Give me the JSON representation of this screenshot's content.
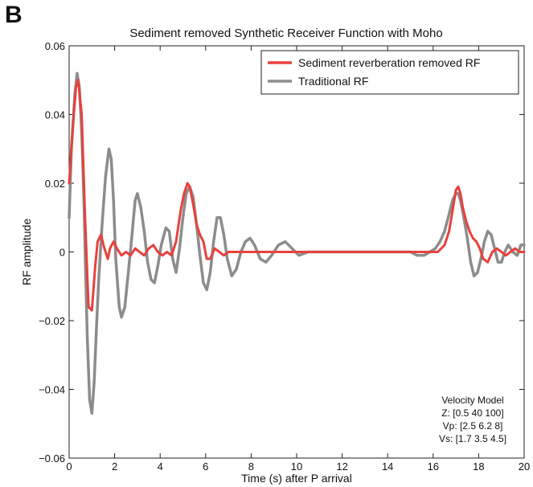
{
  "panel_label": "B",
  "chart_data": {
    "type": "line",
    "title": "Sediment removed Synthetic Receiver Function with Moho",
    "xlabel": "Time (s) after P arrival",
    "ylabel": "RF amplitude",
    "xlim": [
      0,
      20
    ],
    "ylim": [
      -0.06,
      0.06
    ],
    "xticks": [
      0,
      2,
      4,
      6,
      8,
      10,
      12,
      14,
      16,
      18,
      20
    ],
    "yticks": [
      -0.06,
      -0.04,
      -0.02,
      0,
      0.02,
      0.04,
      0.06
    ],
    "ytick_labels": [
      "−0.06",
      "−0.04",
      "−0.02",
      "0",
      "0.02",
      "0.04",
      "0.06"
    ],
    "grid": false,
    "legend_position": "top-right",
    "series": [
      {
        "name": "Sediment reverberation removed RF",
        "color": "#e8413c",
        "x": [
          0,
          0.15,
          0.3,
          0.4,
          0.55,
          0.7,
          0.85,
          1.0,
          1.15,
          1.25,
          1.4,
          1.55,
          1.7,
          1.8,
          1.95,
          2.1,
          2.3,
          2.5,
          2.7,
          2.9,
          3.1,
          3.3,
          3.5,
          3.7,
          3.9,
          4.1,
          4.3,
          4.5,
          4.7,
          4.9,
          5.05,
          5.2,
          5.3,
          5.45,
          5.6,
          5.75,
          5.9,
          6.05,
          6.2,
          6.4,
          6.6,
          6.8,
          7.0,
          7.3,
          7.6,
          8,
          9,
          10,
          11,
          12,
          13,
          14,
          15,
          15.5,
          15.9,
          16.2,
          16.5,
          16.7,
          16.85,
          17.0,
          17.1,
          17.2,
          17.3,
          17.45,
          17.6,
          17.75,
          17.9,
          18.05,
          18.2,
          18.4,
          18.6,
          18.8,
          19.0,
          19.2,
          19.4,
          19.6,
          19.8,
          20
        ],
        "y": [
          0.02,
          0.035,
          0.048,
          0.05,
          0.04,
          0.01,
          -0.016,
          -0.017,
          -0.004,
          0.003,
          0.005,
          0.001,
          -0.002,
          0.001,
          0.003,
          0.001,
          -0.001,
          0.0,
          -0.001,
          0.001,
          0.0,
          -0.001,
          0.001,
          0.002,
          0.0,
          -0.001,
          0.0,
          -0.001,
          0.003,
          0.012,
          0.017,
          0.02,
          0.019,
          0.014,
          0.008,
          0.005,
          0.003,
          -0.002,
          -0.002,
          0.001,
          0.0,
          -0.001,
          0.0,
          0.0,
          0.0,
          0.0,
          0.0,
          0.0,
          0.0,
          0.0,
          0.0,
          0.0,
          0.0,
          0.0,
          0.0,
          0.0,
          0.002,
          0.006,
          0.012,
          0.018,
          0.019,
          0.017,
          0.013,
          0.009,
          0.006,
          0.004,
          0.003,
          0.001,
          -0.002,
          -0.003,
          0.0,
          0.001,
          0.0,
          -0.001,
          0.0,
          0.001,
          0.0,
          0.0
        ]
      },
      {
        "name": "Traditional RF",
        "color": "#8c8c8c",
        "x": [
          0,
          0.1,
          0.25,
          0.35,
          0.45,
          0.55,
          0.65,
          0.72,
          0.8,
          0.9,
          1.0,
          1.1,
          1.2,
          1.3,
          1.45,
          1.6,
          1.75,
          1.85,
          1.95,
          2.05,
          2.2,
          2.3,
          2.45,
          2.6,
          2.75,
          2.9,
          3.0,
          3.15,
          3.3,
          3.45,
          3.6,
          3.75,
          3.9,
          4.05,
          4.25,
          4.4,
          4.55,
          4.7,
          4.85,
          5.0,
          5.15,
          5.3,
          5.45,
          5.6,
          5.75,
          5.9,
          6.05,
          6.2,
          6.35,
          6.5,
          6.65,
          6.8,
          6.95,
          7.15,
          7.35,
          7.55,
          7.75,
          7.95,
          8.15,
          8.4,
          8.65,
          8.9,
          9.2,
          9.5,
          9.8,
          10.1,
          10.5,
          11,
          11.5,
          12,
          12.5,
          13,
          13.5,
          14,
          14.5,
          15,
          15.3,
          15.6,
          15.85,
          16.1,
          16.3,
          16.5,
          16.7,
          16.85,
          17.0,
          17.1,
          17.2,
          17.35,
          17.5,
          17.65,
          17.8,
          17.95,
          18.1,
          18.25,
          18.4,
          18.55,
          18.7,
          18.85,
          19.0,
          19.15,
          19.3,
          19.5,
          19.7,
          19.85,
          20
        ],
        "y": [
          0.01,
          0.03,
          0.046,
          0.052,
          0.048,
          0.035,
          0.015,
          -0.005,
          -0.025,
          -0.043,
          -0.047,
          -0.038,
          -0.022,
          -0.008,
          0.008,
          0.022,
          0.03,
          0.027,
          0.015,
          -0.002,
          -0.016,
          -0.019,
          -0.016,
          -0.006,
          0.004,
          0.015,
          0.017,
          0.013,
          0.006,
          -0.003,
          -0.008,
          -0.009,
          -0.004,
          0.002,
          0.007,
          0.006,
          -0.002,
          -0.006,
          0.001,
          0.01,
          0.017,
          0.019,
          0.016,
          0.008,
          -0.001,
          -0.009,
          -0.011,
          -0.006,
          0.003,
          0.01,
          0.01,
          0.005,
          -0.002,
          -0.007,
          -0.005,
          0.0,
          0.003,
          0.004,
          0.002,
          -0.002,
          -0.003,
          -0.001,
          0.002,
          0.003,
          0.001,
          -0.001,
          0.0,
          0.0,
          0.0,
          0.0,
          0.0,
          0.0,
          0.0,
          0.0,
          0.0,
          0.0,
          -0.001,
          -0.001,
          0.0,
          0.001,
          0.003,
          0.006,
          0.011,
          0.015,
          0.017,
          0.017,
          0.015,
          0.01,
          0.004,
          -0.003,
          -0.007,
          -0.006,
          -0.002,
          0.003,
          0.006,
          0.005,
          0.001,
          -0.003,
          -0.003,
          0.0,
          0.002,
          0.0,
          -0.001,
          0.002,
          0.002
        ]
      }
    ],
    "annotation": {
      "lines": [
        "Velocity Model",
        "Z: [0.5 40 100]",
        "Vp: [2.5 6.2 8]",
        "Vs: [1.7 3.5 4.5]"
      ]
    }
  }
}
